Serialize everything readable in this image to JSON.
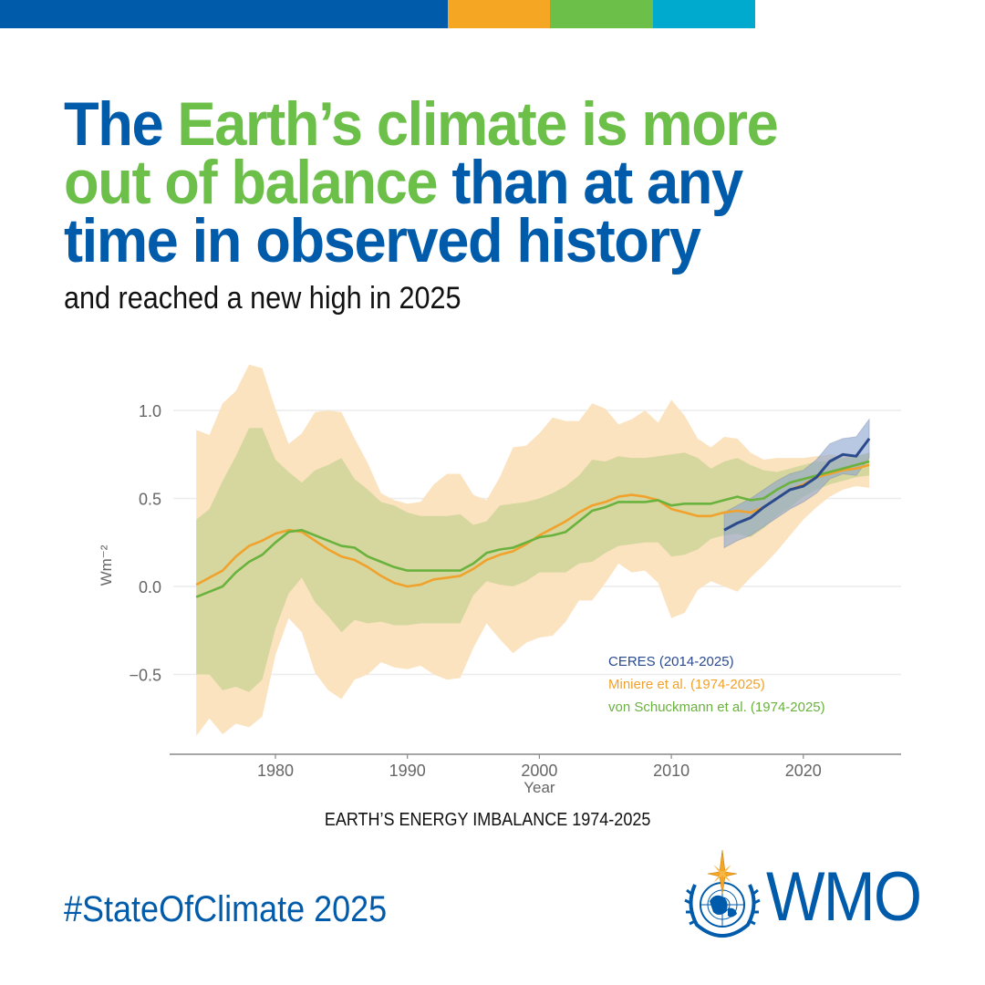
{
  "colors": {
    "blue": "#005bab",
    "green": "#6cc04a",
    "orange": "#f5a623",
    "cyan": "#00a9ce",
    "ceres": "#2b4a8c",
    "miniere_line": "#f0a22c",
    "miniere_band": "#fbe3c0",
    "schuck_line": "#6ab23e",
    "schuck_band": "#d4d69c",
    "ceres_band": "#8aa3cf",
    "axis_text": "#666666",
    "grid": "#ececec"
  },
  "topbar": [
    "#005bab",
    "#f5a623",
    "#6cc04a",
    "#00a9ce"
  ],
  "headline": {
    "parts": [
      {
        "text": "The ",
        "color": "blue"
      },
      {
        "text": "Earth’s climate is more out of balance",
        "color": "green"
      },
      {
        "text": " than at any time in observed history",
        "color": "blue"
      }
    ]
  },
  "subhead": "and reached a new high in 2025",
  "caption": "EARTH’S ENERGY IMBALANCE 1974-2025",
  "hashtag": "#StateOfClimate 2025",
  "logo": {
    "text": "WMO",
    "icon": "wmo-emblem-icon"
  },
  "chart_data": {
    "type": "line",
    "title": "EARTH’S ENERGY IMBALANCE 1974-2025",
    "xlabel": "Year",
    "ylabel": "Wm⁻²",
    "xlim": [
      1971.5,
      2027.5
    ],
    "ylim": [
      -0.95,
      1.3
    ],
    "xticks": [
      1980,
      1990,
      2000,
      2010,
      2020
    ],
    "yticks": [
      -0.5,
      0.0,
      0.5,
      1.0
    ],
    "ytick_labels": [
      "−0.5",
      "0.0",
      "0.5",
      "1.0"
    ],
    "grid": "horizontal",
    "legend_position": "bottom-right",
    "series": [
      {
        "name": "Miniere et al. (1974-2025)",
        "key": "miniere",
        "x": [
          1974,
          1975,
          1976,
          1977,
          1978,
          1979,
          1980,
          1981,
          1982,
          1983,
          1984,
          1985,
          1986,
          1987,
          1988,
          1989,
          1990,
          1991,
          1992,
          1993,
          1994,
          1995,
          1996,
          1997,
          1998,
          1999,
          2000,
          2001,
          2002,
          2003,
          2004,
          2005,
          2006,
          2007,
          2008,
          2009,
          2010,
          2011,
          2012,
          2013,
          2014,
          2015,
          2016,
          2017,
          2018,
          2019,
          2020,
          2021,
          2022,
          2023,
          2024,
          2025
        ],
        "mean": [
          0.01,
          0.05,
          0.09,
          0.17,
          0.23,
          0.26,
          0.3,
          0.32,
          0.31,
          0.26,
          0.21,
          0.17,
          0.15,
          0.11,
          0.06,
          0.02,
          0.0,
          0.01,
          0.04,
          0.05,
          0.06,
          0.1,
          0.15,
          0.18,
          0.2,
          0.24,
          0.29,
          0.33,
          0.37,
          0.42,
          0.46,
          0.48,
          0.51,
          0.52,
          0.51,
          0.49,
          0.44,
          0.42,
          0.4,
          0.4,
          0.42,
          0.43,
          0.42,
          0.45,
          0.5,
          0.55,
          0.58,
          0.62,
          0.64,
          0.66,
          0.67,
          0.69
        ],
        "upper": [
          0.89,
          0.86,
          1.04,
          1.11,
          1.26,
          1.24,
          1.01,
          0.81,
          0.87,
          0.99,
          1.0,
          0.99,
          0.84,
          0.7,
          0.53,
          0.49,
          0.47,
          0.48,
          0.58,
          0.64,
          0.64,
          0.52,
          0.49,
          0.62,
          0.79,
          0.8,
          0.87,
          0.96,
          0.94,
          0.94,
          1.04,
          1.01,
          0.92,
          0.95,
          1.0,
          0.93,
          1.06,
          0.97,
          0.84,
          0.79,
          0.85,
          0.84,
          0.76,
          0.72,
          0.73,
          0.73,
          0.73,
          0.74,
          0.75,
          0.74,
          0.74,
          0.76
        ],
        "lower": [
          -0.85,
          -0.75,
          -0.84,
          -0.78,
          -0.8,
          -0.74,
          -0.39,
          -0.18,
          -0.26,
          -0.49,
          -0.59,
          -0.64,
          -0.53,
          -0.5,
          -0.43,
          -0.46,
          -0.47,
          -0.45,
          -0.5,
          -0.53,
          -0.52,
          -0.35,
          -0.21,
          -0.3,
          -0.38,
          -0.32,
          -0.29,
          -0.28,
          -0.2,
          -0.08,
          -0.08,
          0.02,
          0.13,
          0.08,
          0.09,
          0.02,
          -0.18,
          -0.15,
          -0.02,
          0.03,
          0.0,
          -0.03,
          0.05,
          0.12,
          0.2,
          0.29,
          0.38,
          0.45,
          0.51,
          0.55,
          0.57,
          0.56
        ]
      },
      {
        "name": "von Schuckmann et al. (1974-2025)",
        "key": "schuck",
        "x": [
          1974,
          1975,
          1976,
          1977,
          1978,
          1979,
          1980,
          1981,
          1982,
          1983,
          1984,
          1985,
          1986,
          1987,
          1988,
          1989,
          1990,
          1991,
          1992,
          1993,
          1994,
          1995,
          1996,
          1997,
          1998,
          1999,
          2000,
          2001,
          2002,
          2003,
          2004,
          2005,
          2006,
          2007,
          2008,
          2009,
          2010,
          2011,
          2012,
          2013,
          2014,
          2015,
          2016,
          2017,
          2018,
          2019,
          2020,
          2021,
          2022,
          2023,
          2024,
          2025
        ],
        "mean": [
          -0.06,
          -0.03,
          0.0,
          0.08,
          0.14,
          0.18,
          0.25,
          0.31,
          0.32,
          0.29,
          0.26,
          0.23,
          0.22,
          0.17,
          0.14,
          0.11,
          0.09,
          0.09,
          0.09,
          0.09,
          0.09,
          0.13,
          0.19,
          0.21,
          0.22,
          0.25,
          0.28,
          0.29,
          0.31,
          0.37,
          0.43,
          0.45,
          0.48,
          0.48,
          0.48,
          0.49,
          0.46,
          0.47,
          0.47,
          0.47,
          0.49,
          0.51,
          0.49,
          0.5,
          0.55,
          0.59,
          0.61,
          0.63,
          0.65,
          0.67,
          0.69,
          0.71
        ],
        "upper": [
          0.38,
          0.44,
          0.6,
          0.74,
          0.9,
          0.9,
          0.72,
          0.65,
          0.59,
          0.66,
          0.69,
          0.73,
          0.61,
          0.55,
          0.48,
          0.46,
          0.42,
          0.4,
          0.4,
          0.4,
          0.41,
          0.35,
          0.37,
          0.46,
          0.47,
          0.48,
          0.5,
          0.53,
          0.57,
          0.63,
          0.72,
          0.71,
          0.74,
          0.73,
          0.73,
          0.74,
          0.75,
          0.76,
          0.73,
          0.67,
          0.71,
          0.73,
          0.69,
          0.66,
          0.65,
          0.67,
          0.69,
          0.71,
          0.71,
          0.73,
          0.74,
          0.76
        ],
        "lower": [
          -0.5,
          -0.5,
          -0.59,
          -0.57,
          -0.6,
          -0.53,
          -0.24,
          -0.04,
          0.05,
          -0.09,
          -0.17,
          -0.26,
          -0.19,
          -0.21,
          -0.2,
          -0.22,
          -0.22,
          -0.21,
          -0.21,
          -0.21,
          -0.21,
          -0.05,
          0.03,
          0.01,
          0.0,
          0.03,
          0.08,
          0.08,
          0.08,
          0.13,
          0.14,
          0.19,
          0.23,
          0.24,
          0.25,
          0.25,
          0.17,
          0.18,
          0.21,
          0.27,
          0.29,
          0.3,
          0.28,
          0.33,
          0.4,
          0.45,
          0.51,
          0.55,
          0.58,
          0.6,
          0.62,
          0.63
        ]
      },
      {
        "name": "CERES (2014-2025)",
        "key": "ceres",
        "x": [
          2014,
          2015,
          2016,
          2017,
          2018,
          2019,
          2020,
          2021,
          2022,
          2023,
          2024,
          2025
        ],
        "mean": [
          0.32,
          0.36,
          0.39,
          0.45,
          0.5,
          0.55,
          0.57,
          0.62,
          0.71,
          0.75,
          0.74,
          0.84
        ],
        "upper": [
          0.42,
          0.46,
          0.5,
          0.55,
          0.6,
          0.64,
          0.66,
          0.72,
          0.81,
          0.84,
          0.85,
          0.95
        ],
        "lower": [
          0.22,
          0.26,
          0.29,
          0.34,
          0.39,
          0.44,
          0.48,
          0.53,
          0.61,
          0.64,
          0.63,
          0.73
        ]
      }
    ]
  }
}
